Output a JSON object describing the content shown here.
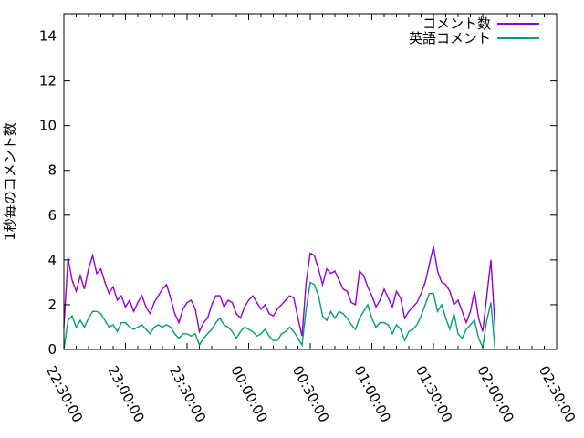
{
  "figure": {
    "background": "#ffffff",
    "border_color": "#000000",
    "tick_color": "#000000"
  },
  "chart_data": {
    "type": "line",
    "title": "",
    "xlabel": "",
    "ylabel": "1秒毎のコメント数",
    "grid": false,
    "legend_position": "top-right-inside",
    "ylim": [
      0,
      15
    ],
    "yticks": [
      0,
      2,
      4,
      6,
      8,
      10,
      12,
      14
    ],
    "xlim_minutes": [
      0,
      240
    ],
    "x_major_tick_minutes": 30,
    "x_minor_tick_minutes": 6,
    "xtick_labels": [
      "22:30:00",
      "23:00:00",
      "23:30:00",
      "00:00:00",
      "00:30:00",
      "01:00:00",
      "01:30:00",
      "02:00:00",
      "02:30:00"
    ],
    "x_minutes": [
      0,
      2,
      4,
      6,
      8,
      10,
      12,
      14,
      16,
      18,
      20,
      22,
      24,
      26,
      28,
      30,
      32,
      34,
      36,
      38,
      40,
      42,
      44,
      46,
      48,
      50,
      52,
      54,
      56,
      58,
      60,
      62,
      64,
      66,
      68,
      70,
      72,
      74,
      76,
      78,
      80,
      82,
      84,
      86,
      88,
      90,
      92,
      94,
      96,
      98,
      100,
      102,
      104,
      106,
      108,
      110,
      112,
      114,
      116,
      118,
      120,
      122,
      124,
      126,
      128,
      130,
      132,
      134,
      136,
      138,
      140,
      142,
      144,
      146,
      148,
      150,
      152,
      154,
      156,
      158,
      160,
      162,
      164,
      166,
      168,
      170,
      172,
      174,
      176,
      178,
      180,
      182,
      184,
      186,
      188,
      190,
      192,
      194,
      196,
      198,
      200,
      202,
      204,
      206,
      208,
      210
    ],
    "series": [
      {
        "name": "コメント数",
        "color": "#9400d3",
        "values": [
          1.0,
          4.1,
          3.1,
          2.6,
          3.3,
          2.7,
          3.6,
          4.2,
          3.4,
          3.6,
          3.0,
          2.5,
          2.8,
          2.2,
          2.4,
          1.9,
          2.2,
          1.7,
          2.1,
          2.4,
          1.9,
          1.6,
          2.1,
          2.4,
          2.7,
          2.9,
          2.3,
          1.6,
          1.2,
          1.8,
          2.1,
          2.2,
          1.8,
          0.8,
          1.2,
          1.4,
          2.0,
          2.4,
          2.4,
          1.9,
          2.2,
          2.1,
          1.6,
          1.4,
          1.9,
          2.2,
          2.4,
          2.1,
          1.8,
          2.0,
          1.6,
          1.5,
          1.8,
          2.0,
          2.2,
          2.4,
          2.3,
          1.4,
          0.6,
          3.0,
          4.3,
          4.2,
          3.6,
          2.9,
          3.6,
          3.4,
          3.5,
          3.1,
          2.7,
          2.6,
          2.1,
          2.0,
          3.5,
          3.3,
          2.8,
          2.4,
          1.9,
          2.2,
          2.7,
          2.3,
          1.9,
          2.6,
          2.3,
          1.4,
          1.7,
          1.9,
          2.1,
          2.5,
          3.0,
          3.8,
          4.6,
          3.5,
          3.0,
          2.9,
          2.6,
          2.0,
          2.2,
          1.7,
          1.2,
          1.7,
          2.6,
          1.4,
          0.8,
          2.4,
          4.0,
          1.0
        ]
      },
      {
        "name": "英語コメント",
        "color": "#009e73",
        "values": [
          0.0,
          1.3,
          1.5,
          1.0,
          1.3,
          1.0,
          1.4,
          1.7,
          1.7,
          1.6,
          1.3,
          1.0,
          1.1,
          0.8,
          1.2,
          1.2,
          1.0,
          0.9,
          1.0,
          1.1,
          0.9,
          0.7,
          1.0,
          1.1,
          1.0,
          1.1,
          1.0,
          0.7,
          0.5,
          0.7,
          0.7,
          0.6,
          0.7,
          0.2,
          0.5,
          0.7,
          0.9,
          1.2,
          1.4,
          1.1,
          1.0,
          0.8,
          0.5,
          0.8,
          1.0,
          0.9,
          0.8,
          0.6,
          0.7,
          0.9,
          0.6,
          0.4,
          0.4,
          0.7,
          0.8,
          1.0,
          0.8,
          0.5,
          0.2,
          1.8,
          3.0,
          2.9,
          2.4,
          1.5,
          1.3,
          1.7,
          1.4,
          1.7,
          1.6,
          1.4,
          1.1,
          0.9,
          1.4,
          1.7,
          2.0,
          1.4,
          1.0,
          1.2,
          1.2,
          1.1,
          0.7,
          1.1,
          0.9,
          0.4,
          0.8,
          0.9,
          1.1,
          1.5,
          2.0,
          2.5,
          2.5,
          1.7,
          2.0,
          1.4,
          0.9,
          1.6,
          0.7,
          0.5,
          0.9,
          1.1,
          1.3,
          0.5,
          0.1,
          1.3,
          2.1,
          0.0
        ]
      }
    ]
  }
}
